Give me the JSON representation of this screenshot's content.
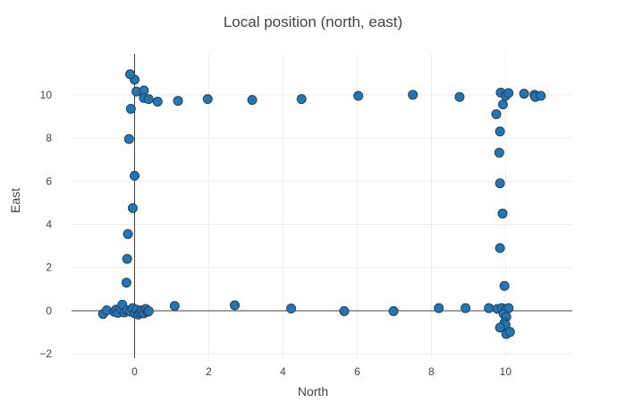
{
  "chart_data": {
    "type": "scatter",
    "title": "Local position (north, east)",
    "xlabel": "North",
    "ylabel": "East",
    "xlim": [
      -1.7,
      11.8
    ],
    "ylim": [
      -2.2,
      11.9
    ],
    "xticks": [
      0,
      2,
      4,
      6,
      8,
      10
    ],
    "yticks": [
      -2,
      0,
      2,
      4,
      6,
      8,
      10
    ],
    "grid": true,
    "marker_color": "#1f77b4",
    "marker_edge_color": "#2a3f5f",
    "points": [
      {
        "x": -0.85,
        "y": -0.15
      },
      {
        "x": -0.75,
        "y": 0.02
      },
      {
        "x": -0.55,
        "y": -0.05
      },
      {
        "x": -0.5,
        "y": 0.05
      },
      {
        "x": -0.45,
        "y": -0.1
      },
      {
        "x": -0.38,
        "y": 0.1
      },
      {
        "x": -0.33,
        "y": 0.28
      },
      {
        "x": -0.28,
        "y": -0.08
      },
      {
        "x": -0.2,
        "y": 0.02
      },
      {
        "x": -0.12,
        "y": -0.04
      },
      {
        "x": -0.05,
        "y": 0.12
      },
      {
        "x": 0.0,
        "y": -0.12
      },
      {
        "x": 0.05,
        "y": 0.05
      },
      {
        "x": 0.1,
        "y": -0.18
      },
      {
        "x": 0.15,
        "y": -0.08
      },
      {
        "x": 0.2,
        "y": 0.02
      },
      {
        "x": 0.25,
        "y": -0.12
      },
      {
        "x": 0.3,
        "y": 0.08
      },
      {
        "x": 0.35,
        "y": -0.05
      },
      {
        "x": 0.38,
        "y": -0.02
      },
      {
        "x": -0.22,
        "y": 1.3
      },
      {
        "x": -0.2,
        "y": 2.4
      },
      {
        "x": -0.18,
        "y": 3.55
      },
      {
        "x": -0.05,
        "y": 4.75
      },
      {
        "x": 0.0,
        "y": 6.25
      },
      {
        "x": -0.15,
        "y": 7.95
      },
      {
        "x": -0.1,
        "y": 9.35
      },
      {
        "x": 0.05,
        "y": 10.15
      },
      {
        "x": 0.0,
        "y": 10.7
      },
      {
        "x": -0.12,
        "y": 10.95
      },
      {
        "x": 0.25,
        "y": 10.2
      },
      {
        "x": 0.25,
        "y": 9.85
      },
      {
        "x": 0.38,
        "y": 9.8
      },
      {
        "x": 0.62,
        "y": 9.68
      },
      {
        "x": 1.17,
        "y": 9.72
      },
      {
        "x": 1.97,
        "y": 9.8
      },
      {
        "x": 3.17,
        "y": 9.76
      },
      {
        "x": 4.5,
        "y": 9.8
      },
      {
        "x": 6.03,
        "y": 9.95
      },
      {
        "x": 7.5,
        "y": 10.0
      },
      {
        "x": 8.76,
        "y": 9.9
      },
      {
        "x": 9.87,
        "y": 10.1
      },
      {
        "x": 10.0,
        "y": 9.95
      },
      {
        "x": 10.08,
        "y": 10.08
      },
      {
        "x": 10.5,
        "y": 10.05
      },
      {
        "x": 10.78,
        "y": 10.0
      },
      {
        "x": 10.8,
        "y": 9.9
      },
      {
        "x": 10.95,
        "y": 9.95
      },
      {
        "x": 9.93,
        "y": 9.55
      },
      {
        "x": 9.75,
        "y": 9.1
      },
      {
        "x": 9.85,
        "y": 8.3
      },
      {
        "x": 9.83,
        "y": 7.32
      },
      {
        "x": 9.85,
        "y": 5.9
      },
      {
        "x": 9.92,
        "y": 4.5
      },
      {
        "x": 9.85,
        "y": 2.9
      },
      {
        "x": 9.97,
        "y": 1.15
      },
      {
        "x": 1.08,
        "y": 0.22
      },
      {
        "x": 2.7,
        "y": 0.25
      },
      {
        "x": 4.22,
        "y": 0.1
      },
      {
        "x": 5.65,
        "y": -0.02
      },
      {
        "x": 6.98,
        "y": -0.02
      },
      {
        "x": 8.2,
        "y": 0.12
      },
      {
        "x": 8.92,
        "y": 0.12
      },
      {
        "x": 9.55,
        "y": 0.12
      },
      {
        "x": 9.78,
        "y": 0.08
      },
      {
        "x": 9.9,
        "y": 0.12
      },
      {
        "x": 10.0,
        "y": 0.05
      },
      {
        "x": 10.08,
        "y": 0.12
      },
      {
        "x": 9.95,
        "y": -0.15
      },
      {
        "x": 10.02,
        "y": -0.28
      },
      {
        "x": 9.97,
        "y": -0.55
      },
      {
        "x": 10.0,
        "y": -0.65
      },
      {
        "x": 9.85,
        "y": -0.78
      },
      {
        "x": 10.02,
        "y": -1.08
      },
      {
        "x": 10.12,
        "y": -0.98
      }
    ]
  }
}
